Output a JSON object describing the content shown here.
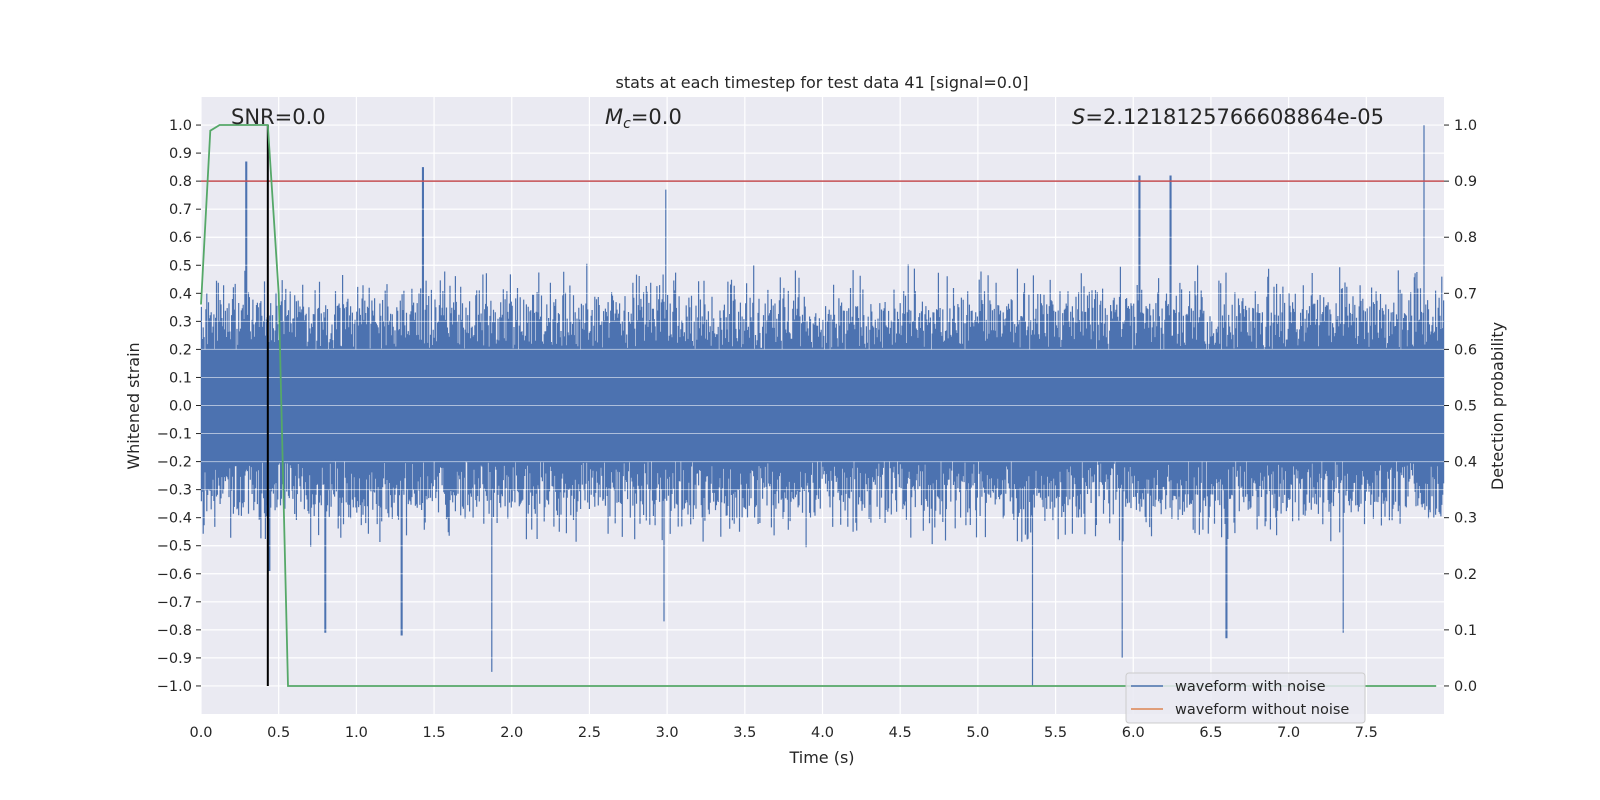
{
  "chart_data": {
    "type": "line",
    "title": "stats at each timestep for test data 41 [signal=0.0]",
    "xlabel": "Time (s)",
    "ylabel": "Whitened strain",
    "ylabel_right": "Detection probability",
    "xlim": [
      0.0,
      8.0
    ],
    "ylim": [
      -1.1,
      1.1
    ],
    "ylim_right": [
      -0.05,
      1.05
    ],
    "x_ticks": [
      0.0,
      0.5,
      1.0,
      1.5,
      2.0,
      2.5,
      3.0,
      3.5,
      4.0,
      4.5,
      5.0,
      5.5,
      6.0,
      6.5,
      7.0,
      7.5
    ],
    "x_tick_labels": [
      "0.0",
      "0.5",
      "1.0",
      "1.5",
      "2.0",
      "2.5",
      "3.0",
      "3.5",
      "4.0",
      "4.5",
      "5.0",
      "5.5",
      "6.0",
      "6.5",
      "7.0",
      "7.5"
    ],
    "y_ticks": [
      1.0,
      0.9,
      0.8,
      0.7,
      0.6,
      0.5,
      0.4,
      0.3,
      0.2,
      0.1,
      0.0,
      -0.1,
      -0.2,
      -0.3,
      -0.4,
      -0.5,
      -0.6,
      -0.7,
      -0.8,
      -0.9,
      -1.0
    ],
    "y_tick_labels": [
      "1.0",
      "0.9",
      "0.8",
      "0.7",
      "0.6",
      "0.5",
      "0.4",
      "0.3",
      "0.2",
      "0.1",
      "0.0",
      "−0.1",
      "−0.2",
      "−0.3",
      "−0.4",
      "−0.5",
      "−0.6",
      "−0.7",
      "−0.8",
      "−0.9",
      "−1.0"
    ],
    "y_right_ticks": [
      1.0,
      0.9,
      0.8,
      0.7,
      0.6,
      0.5,
      0.4,
      0.3,
      0.2,
      0.1,
      0.0
    ],
    "y_right_tick_labels": [
      "1.0",
      "0.9",
      "0.8",
      "0.7",
      "0.6",
      "0.5",
      "0.4",
      "0.3",
      "0.2",
      "0.1",
      "0.0"
    ],
    "annotations": {
      "snr": "SNR=0.0",
      "mc_symbol": "M",
      "mc_subscript": "c",
      "mc_value": "=0.0",
      "s_symbol": "S",
      "s_value": "=2.1218125766608864e-05"
    },
    "threshold_right": 0.9,
    "marker_time": 0.43,
    "detection_probability": {
      "x": [
        0.0,
        0.06,
        0.12,
        0.2,
        0.3,
        0.38,
        0.43,
        0.5,
        0.56,
        0.6,
        1.0,
        2.0,
        3.0,
        4.0,
        5.0,
        6.0,
        7.0,
        7.95
      ],
      "y": [
        0.68,
        0.99,
        1.0,
        1.0,
        1.0,
        1.0,
        1.0,
        0.7,
        0.0,
        0.0,
        0.0,
        0.0,
        0.0,
        0.0,
        0.0,
        0.0,
        0.0,
        0.0
      ]
    },
    "waveform_noise": {
      "envelope_typical": [
        -0.5,
        0.5
      ],
      "peaks": [
        {
          "t": 0.29,
          "v": 0.87
        },
        {
          "t": 1.43,
          "v": 0.85
        },
        {
          "t": 2.99,
          "v": 0.77
        },
        {
          "t": 6.04,
          "v": 0.82
        },
        {
          "t": 6.24,
          "v": 0.82
        },
        {
          "t": 7.87,
          "v": 1.0
        },
        {
          "t": 0.44,
          "v": -0.59
        },
        {
          "t": 0.8,
          "v": -0.81
        },
        {
          "t": 1.29,
          "v": -0.82
        },
        {
          "t": 1.87,
          "v": -0.95
        },
        {
          "t": 2.98,
          "v": -0.77
        },
        {
          "t": 5.35,
          "v": -1.0
        },
        {
          "t": 5.93,
          "v": -0.9
        },
        {
          "t": 6.6,
          "v": -0.83
        },
        {
          "t": 7.35,
          "v": -0.81
        }
      ]
    },
    "series": [
      {
        "name": "waveform with noise",
        "color": "#4c72b0"
      },
      {
        "name": "waveform without noise",
        "color": "#dd8452"
      }
    ],
    "colors": {
      "axes_bg": "#eaeaf2",
      "grid": "#ffffff",
      "probability": "#55a868",
      "threshold": "#c44e52",
      "marker": "#000000"
    },
    "legend_position": "lower-right"
  }
}
